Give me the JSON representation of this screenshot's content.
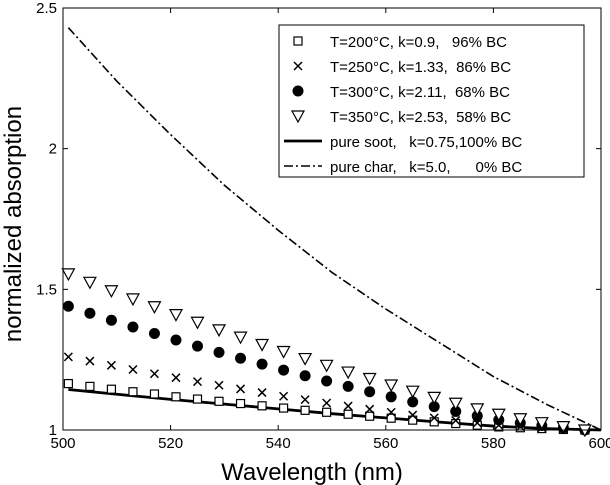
{
  "chart_data": {
    "type": "scatter",
    "xlabel": "Wavelength (nm)",
    "ylabel": "normalized absorption",
    "xlim": [
      500,
      600
    ],
    "ylim": [
      1,
      2.5
    ],
    "xticks": [
      "500",
      "520",
      "540",
      "560",
      "580",
      "600"
    ],
    "yticks": [
      "1",
      "1.5",
      "2",
      "2.5"
    ],
    "grid": false,
    "legend_position": "top-right",
    "series": [
      {
        "name": "T=200°C, k=0.9,   96% BC",
        "marker": "square-open",
        "style": "markers",
        "k": 0.9,
        "x": [
          501,
          505,
          509,
          513,
          517,
          521,
          525,
          529,
          533,
          537,
          541,
          545,
          549,
          553,
          557,
          561,
          565,
          569,
          573,
          577,
          581,
          585,
          589,
          593,
          597
        ],
        "y": [
          1.165,
          1.155,
          1.145,
          1.136,
          1.128,
          1.118,
          1.11,
          1.102,
          1.094,
          1.086,
          1.078,
          1.07,
          1.063,
          1.056,
          1.049,
          1.042,
          1.035,
          1.029,
          1.023,
          1.017,
          1.011,
          1.008,
          1.005,
          1.002,
          1.0
        ]
      },
      {
        "name": "T=250°C, k=1.33,  86% BC",
        "marker": "x",
        "style": "markers",
        "k": 1.33,
        "x": [
          501,
          505,
          509,
          513,
          517,
          521,
          525,
          529,
          533,
          537,
          541,
          545,
          549,
          553,
          557,
          561,
          565,
          569,
          573,
          577,
          581,
          585,
          589,
          593,
          597
        ],
        "y": [
          1.26,
          1.245,
          1.23,
          1.215,
          1.2,
          1.186,
          1.172,
          1.159,
          1.146,
          1.133,
          1.12,
          1.108,
          1.096,
          1.085,
          1.074,
          1.063,
          1.053,
          1.043,
          1.034,
          1.025,
          1.017,
          1.012,
          1.008,
          1.004,
          1.0
        ]
      },
      {
        "name": "T=300°C, k=2.11,  68% BC",
        "marker": "circle-filled",
        "style": "markers",
        "k": 2.11,
        "x": [
          501,
          505,
          509,
          513,
          517,
          521,
          525,
          529,
          533,
          537,
          541,
          545,
          549,
          553,
          557,
          561,
          565,
          569,
          573,
          577,
          581,
          585,
          589,
          593,
          597
        ],
        "y": [
          1.44,
          1.415,
          1.39,
          1.366,
          1.343,
          1.32,
          1.298,
          1.276,
          1.255,
          1.234,
          1.213,
          1.193,
          1.174,
          1.155,
          1.136,
          1.118,
          1.1,
          1.083,
          1.066,
          1.05,
          1.036,
          1.025,
          1.016,
          1.008,
          1.0
        ]
      },
      {
        "name": "T=350°C, k=2.53,  58% BC",
        "marker": "triangle-down-open",
        "style": "markers",
        "k": 2.53,
        "x": [
          501,
          505,
          509,
          513,
          517,
          521,
          525,
          529,
          533,
          537,
          541,
          545,
          549,
          553,
          557,
          561,
          565,
          569,
          573,
          577,
          581,
          585,
          589,
          593,
          597
        ],
        "y": [
          1.555,
          1.525,
          1.495,
          1.466,
          1.438,
          1.41,
          1.383,
          1.356,
          1.33,
          1.304,
          1.279,
          1.254,
          1.23,
          1.206,
          1.183,
          1.16,
          1.138,
          1.116,
          1.095,
          1.075,
          1.056,
          1.04,
          1.026,
          1.012,
          1.0
        ]
      },
      {
        "name": "pure soot,   k=0.75,100% BC",
        "marker": "none",
        "style": "solid",
        "k": 0.75,
        "x": [
          501,
          510,
          520,
          530,
          540,
          550,
          560,
          570,
          580,
          590,
          600
        ],
        "y": [
          1.144,
          1.127,
          1.109,
          1.092,
          1.075,
          1.058,
          1.043,
          1.028,
          1.014,
          1.005,
          1.0
        ]
      },
      {
        "name": "pure char,   k=5.0,      0% BC",
        "marker": "none",
        "style": "dashdot",
        "k": 5.0,
        "x": [
          501,
          510,
          520,
          530,
          540,
          550,
          560,
          570,
          580,
          590,
          600
        ],
        "y": [
          2.43,
          2.24,
          2.05,
          1.87,
          1.71,
          1.56,
          1.43,
          1.31,
          1.19,
          1.09,
          1.0
        ]
      }
    ]
  }
}
